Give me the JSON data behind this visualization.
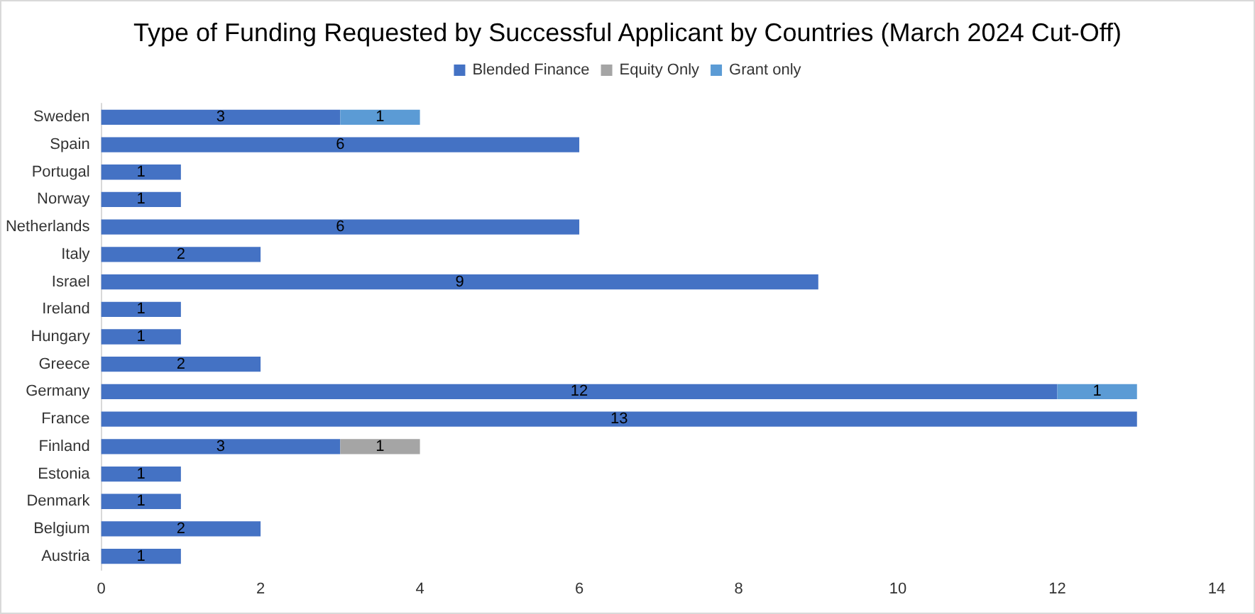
{
  "chart_data": {
    "type": "bar",
    "orientation": "horizontal",
    "stacked": true,
    "title": "Type of Funding Requested by Successful Applicant by Countries (March 2024 Cut-Off)",
    "categories": [
      "Sweden",
      "Spain",
      "Portugal",
      "Norway",
      "Netherlands",
      "Italy",
      "Israel",
      "Ireland",
      "Hungary",
      "Greece",
      "Germany",
      "France",
      "Finland",
      "Estonia",
      "Denmark",
      "Belgium",
      "Austria"
    ],
    "series": [
      {
        "name": "Blended Finance",
        "color": "#4472c4",
        "values": [
          3,
          6,
          1,
          1,
          6,
          2,
          9,
          1,
          1,
          2,
          12,
          13,
          3,
          1,
          1,
          2,
          1
        ]
      },
      {
        "name": "Equity Only",
        "color": "#a5a5a5",
        "values": [
          null,
          null,
          null,
          null,
          null,
          null,
          null,
          null,
          null,
          null,
          null,
          null,
          1,
          null,
          null,
          null,
          null
        ]
      },
      {
        "name": "Grant only",
        "color": "#5b9bd5",
        "values": [
          1,
          null,
          null,
          null,
          null,
          null,
          null,
          null,
          null,
          null,
          1,
          null,
          null,
          null,
          null,
          null,
          null
        ]
      }
    ],
    "xlim": [
      0,
      14
    ],
    "xticks": [
      0,
      2,
      4,
      6,
      8,
      10,
      12,
      14
    ],
    "data_labels": true,
    "legend": "top",
    "grid": false
  }
}
